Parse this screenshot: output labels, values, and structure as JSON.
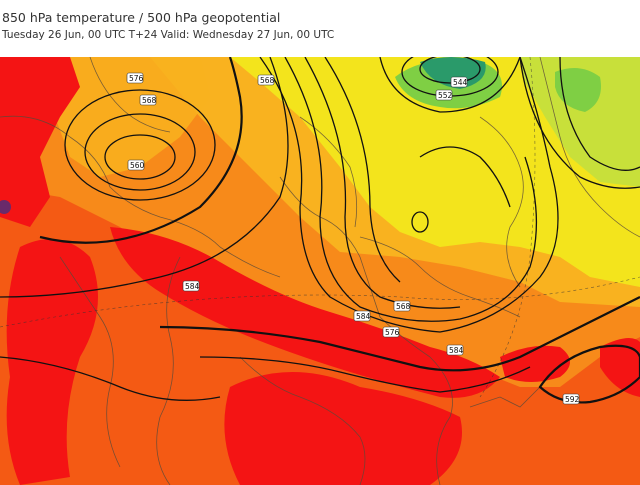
{
  "title": "850 hPa temperature / 500 hPa geopotential",
  "subtitle": "Tuesday 26 Jun, 00 UTC T+24 Valid: Wednesday 27 Jun, 00 UTC",
  "contour_labels": [
    "576",
    "568",
    "560",
    "568",
    "552",
    "544",
    "568",
    "584",
    "584",
    "576",
    "584",
    "592"
  ],
  "colors": {
    "hot_red": "#f41414",
    "red_orange": "#f45a14",
    "orange": "#f78a1a",
    "light_orange": "#f9b21f",
    "yellow": "#f3e41c",
    "yellow_green": "#c8e03a",
    "green": "#7fcf44",
    "dark_green": "#2a9a6a",
    "contour": "#111111",
    "border": "#5a4a3a"
  }
}
